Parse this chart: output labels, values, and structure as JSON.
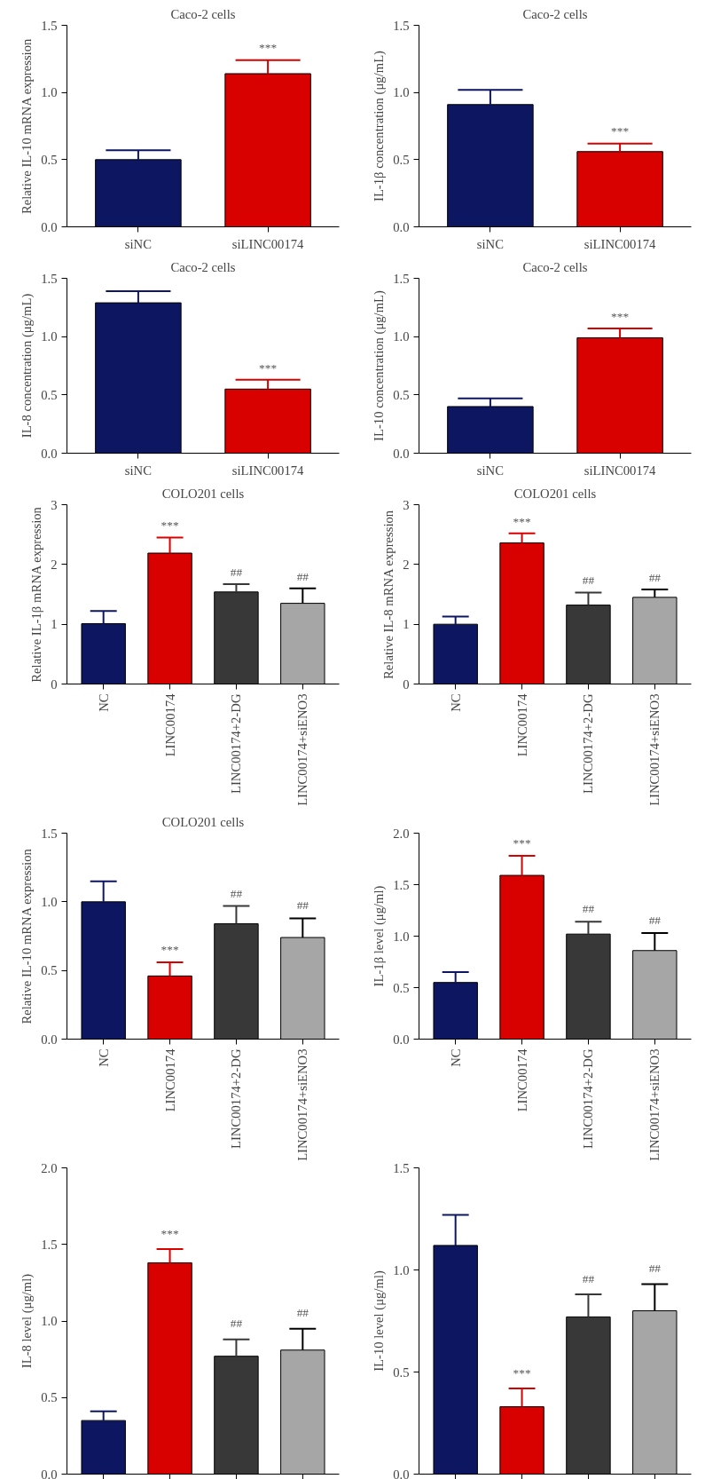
{
  "chart_data": [
    {
      "type": "bar",
      "title": "Caco-2 cells",
      "ylabel": "Relative IL-10 mRNA expression",
      "categories": [
        "siNC",
        "siLINC00174"
      ],
      "values": [
        0.5,
        1.14
      ],
      "errors": [
        [
          0.5,
          0.57
        ],
        [
          1.14,
          1.24
        ]
      ],
      "colors": [
        "#0d1660",
        "#d90000"
      ],
      "value_labels": [
        null,
        "***"
      ],
      "ylim": [
        0,
        1.5
      ],
      "yticks": [
        {
          "value": 0,
          "label": "0.0"
        },
        0.5,
        {
          "value": 1,
          "label": "1.0"
        },
        1.5
      ],
      "grid": false
    },
    {
      "type": "bar",
      "title": "Caco-2 cells",
      "ylabel": "IL-1β concentration (μg/mL)",
      "categories": [
        "siNC",
        "siLINC00174"
      ],
      "values": [
        0.91,
        0.56
      ],
      "errors": [
        [
          0.91,
          1.02
        ],
        [
          0.56,
          0.62
        ]
      ],
      "colors": [
        "#0d1660",
        "#d90000"
      ],
      "value_labels": [
        null,
        "***"
      ],
      "ylim": [
        0,
        1.5
      ],
      "yticks": [
        {
          "value": 0,
          "label": "0.0"
        },
        0.5,
        {
          "value": 1,
          "label": "1.0"
        },
        1.5
      ],
      "grid": false
    },
    {
      "type": "bar",
      "title": "Caco-2 cells",
      "ylabel": "IL-8 concentration (μg/mL)",
      "categories": [
        "siNC",
        "siLINC00174"
      ],
      "values": [
        1.29,
        0.55
      ],
      "errors": [
        [
          1.29,
          1.39
        ],
        [
          0.55,
          0.63
        ]
      ],
      "colors": [
        "#0d1660",
        "#d90000"
      ],
      "value_labels": [
        null,
        "***"
      ],
      "ylim": [
        0,
        1.5
      ],
      "yticks": [
        {
          "value": 0,
          "label": "0.0"
        },
        0.5,
        {
          "value": 1,
          "label": "1.0"
        },
        1.5
      ],
      "grid": false
    },
    {
      "type": "bar",
      "title": "Caco-2 cells",
      "ylabel": "IL-10 concentration (μg/mL)",
      "categories": [
        "siNC",
        "siLINC00174"
      ],
      "values": [
        0.4,
        0.99
      ],
      "errors": [
        [
          0.4,
          0.47
        ],
        [
          0.99,
          1.07
        ]
      ],
      "colors": [
        "#0d1660",
        "#d90000"
      ],
      "value_labels": [
        null,
        "***"
      ],
      "ylim": [
        0,
        1.5
      ],
      "yticks": [
        {
          "value": 0,
          "label": "0.0"
        },
        0.5,
        {
          "value": 1,
          "label": "1.0"
        },
        1.5
      ],
      "grid": false
    },
    {
      "type": "bar",
      "title": "COLO201 cells",
      "ylabel": "Relative IL-1β mRNA expression",
      "categories": [
        "NC",
        "LINC00174",
        "LINC00174+2-DG",
        "LINC00174+siENO3"
      ],
      "values": [
        1.01,
        2.19,
        1.54,
        1.35
      ],
      "errors": [
        [
          1.01,
          1.22
        ],
        [
          2.19,
          2.45
        ],
        [
          1.54,
          1.67
        ],
        [
          1.35,
          1.6
        ]
      ],
      "colors": [
        "#0d1660",
        "#d90000",
        "#383838",
        "#a6a6a6"
      ],
      "value_labels": [
        null,
        "***",
        "##",
        "##"
      ],
      "ylim": [
        0,
        3
      ],
      "yticks": [
        0,
        1,
        2,
        3
      ],
      "grid": false
    },
    {
      "type": "bar",
      "title": "COLO201 cells",
      "ylabel": "Relative IL-8 mRNA expression",
      "categories": [
        "NC",
        "LINC00174",
        "LINC00174+2-DG",
        "LINC00174+siENO3"
      ],
      "values": [
        1.0,
        2.36,
        1.32,
        1.45
      ],
      "errors": [
        [
          1.0,
          1.13
        ],
        [
          2.36,
          2.52
        ],
        [
          1.32,
          1.53
        ],
        [
          1.45,
          1.58
        ]
      ],
      "colors": [
        "#0d1660",
        "#d90000",
        "#383838",
        "#a6a6a6"
      ],
      "value_labels": [
        null,
        "***",
        "##",
        "##"
      ],
      "ylim": [
        0,
        3
      ],
      "yticks": [
        0,
        1,
        2,
        3
      ],
      "grid": false
    },
    {
      "type": "bar",
      "title": "COLO201 cells",
      "ylabel": "Relative IL-10 mRNA expression",
      "categories": [
        "NC",
        "LINC00174",
        "LINC00174+2-DG",
        "LINC00174+siENO3"
      ],
      "values": [
        1.0,
        0.46,
        0.84,
        0.74
      ],
      "errors": [
        [
          1.0,
          1.15
        ],
        [
          0.46,
          0.56
        ],
        [
          0.84,
          0.97
        ],
        [
          0.74,
          0.88
        ]
      ],
      "colors": [
        "#0d1660",
        "#d90000",
        "#383838",
        "#a6a6a6"
      ],
      "value_labels": [
        null,
        "***",
        "##",
        "##"
      ],
      "ylim": [
        0,
        1.5
      ],
      "yticks": [
        {
          "value": 0,
          "label": "0.0"
        },
        0.5,
        {
          "value": 1,
          "label": "1.0"
        },
        1.5
      ],
      "grid": false
    },
    {
      "type": "bar",
      "ylabel": "IL-1β level (μg/ml)",
      "categories": [
        "NC",
        "LINC00174",
        "LINC00174+2-DG",
        "LINC00174+siENO3"
      ],
      "values": [
        0.55,
        1.59,
        1.02,
        0.86
      ],
      "errors": [
        [
          0.55,
          0.65
        ],
        [
          1.59,
          1.78
        ],
        [
          1.02,
          1.14
        ],
        [
          0.86,
          1.03
        ]
      ],
      "colors": [
        "#0d1660",
        "#d90000",
        "#383838",
        "#a6a6a6"
      ],
      "value_labels": [
        null,
        "***",
        "##",
        "##"
      ],
      "ylim": [
        0,
        2
      ],
      "yticks": [
        {
          "value": 0,
          "label": "0.0"
        },
        0.5,
        {
          "value": 1,
          "label": "1.0"
        },
        1.5,
        {
          "value": 2,
          "label": "2.0"
        }
      ],
      "grid": false
    },
    {
      "type": "bar",
      "ylabel": "IL-8 level (μg/ml)",
      "categories": [
        null,
        null,
        null,
        null
      ],
      "values": [
        0.35,
        1.38,
        0.77,
        0.81
      ],
      "errors": [
        [
          0.35,
          0.41
        ],
        [
          1.38,
          1.47
        ],
        [
          0.77,
          0.88
        ],
        [
          0.81,
          0.95
        ]
      ],
      "colors": [
        "#0d1660",
        "#d90000",
        "#383838",
        "#a6a6a6"
      ],
      "value_labels": [
        null,
        "***",
        "##",
        "##"
      ],
      "ylim": [
        0,
        2
      ],
      "yticks": [
        {
          "value": 0,
          "label": "0.0"
        },
        0.5,
        {
          "value": 1,
          "label": "1.0"
        },
        1.5,
        {
          "value": 2,
          "label": "2.0"
        }
      ],
      "grid": false,
      "tick_labels": "y"
    },
    {
      "type": "bar",
      "ylabel": "IL-10 level (μg/ml)",
      "categories": [
        null,
        null,
        null,
        null
      ],
      "values": [
        1.12,
        0.33,
        0.77,
        0.8
      ],
      "errors": [
        [
          1.12,
          1.27
        ],
        [
          0.33,
          0.42
        ],
        [
          0.77,
          0.88
        ],
        [
          0.8,
          0.93
        ]
      ],
      "colors": [
        "#0d1660",
        "#d90000",
        "#383838",
        "#a6a6a6"
      ],
      "value_labels": [
        null,
        "***",
        "##",
        "##"
      ],
      "ylim": [
        0,
        1.5
      ],
      "yticks": [
        {
          "value": 0,
          "label": "0.0"
        },
        0.5,
        {
          "value": 1,
          "label": "1.0"
        },
        1.5
      ],
      "grid": false,
      "tick_labels": "y"
    }
  ]
}
